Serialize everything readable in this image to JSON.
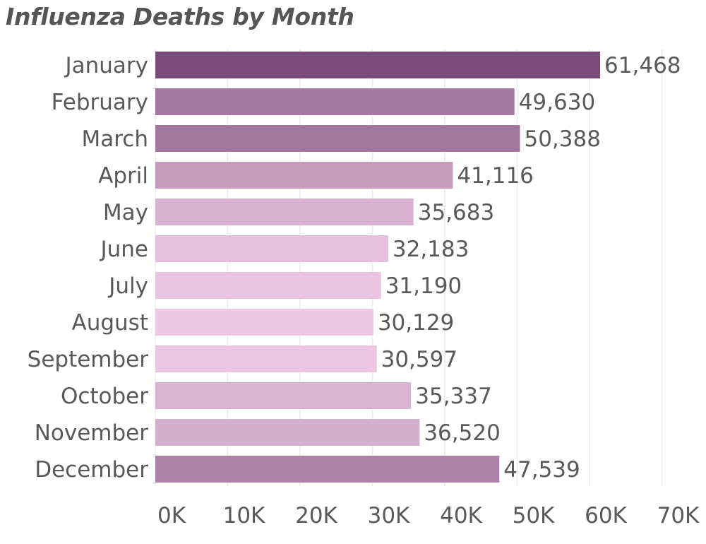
{
  "chart_data": {
    "type": "bar",
    "orientation": "horizontal",
    "title": "Influenza Deaths by Month",
    "xlabel": "",
    "ylabel": "",
    "xlim": [
      0,
      70000
    ],
    "grid": true,
    "categories": [
      "January",
      "February",
      "March",
      "April",
      "May",
      "June",
      "July",
      "August",
      "September",
      "October",
      "November",
      "December"
    ],
    "values": [
      61468,
      49630,
      50388,
      41116,
      35683,
      32183,
      31190,
      30129,
      30597,
      35337,
      36520,
      47539
    ],
    "value_labels": [
      "61,468",
      "49,630",
      "50,388",
      "41,116",
      "35,683",
      "32,183",
      "31,190",
      "30,129",
      "30,597",
      "35,337",
      "36,520",
      "47,539"
    ],
    "ticks": [
      0,
      10000,
      20000,
      30000,
      40000,
      50000,
      60000,
      70000
    ],
    "tick_labels": [
      "0K",
      "10K",
      "20K",
      "30K",
      "40K",
      "50K",
      "60K",
      "70K"
    ],
    "color_scale": {
      "low": "#edc7e4",
      "high": "#7a4a78"
    }
  }
}
